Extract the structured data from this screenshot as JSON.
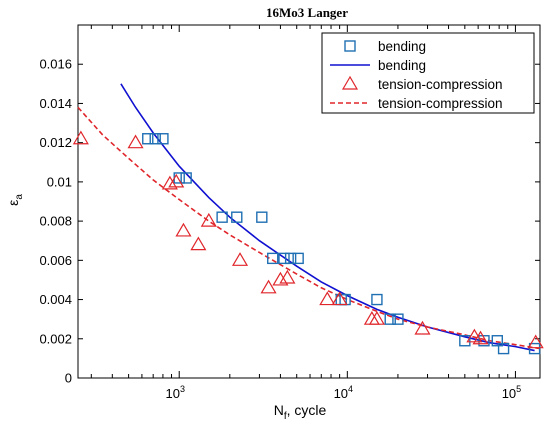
{
  "chart_data": {
    "type": "scatter",
    "title": "16Mo3 Langer",
    "xlabel": "N",
    "xlabel_sub": "f",
    "xlabel_rest": ", cycle",
    "ylabel": "ε",
    "ylabel_sub": "a",
    "x_scale": "log",
    "xlim": [
      250,
      140000
    ],
    "ylim": [
      0,
      0.018
    ],
    "x_ticks": [
      {
        "value": 1000,
        "base": "10",
        "exp": "3"
      },
      {
        "value": 10000,
        "base": "10",
        "exp": "4"
      },
      {
        "value": 100000,
        "base": "10",
        "exp": "5"
      }
    ],
    "y_ticks": [
      {
        "value": 0,
        "label": "0"
      },
      {
        "value": 0.002,
        "label": "0.002"
      },
      {
        "value": 0.004,
        "label": "0.004"
      },
      {
        "value": 0.006,
        "label": "0.006"
      },
      {
        "value": 0.008,
        "label": "0.008"
      },
      {
        "value": 0.01,
        "label": "0.01"
      },
      {
        "value": 0.012,
        "label": "0.012"
      },
      {
        "value": 0.014,
        "label": "0.014"
      },
      {
        "value": 0.016,
        "label": "0.016"
      }
    ],
    "grid": false,
    "legend_position": "top-right",
    "series": [
      {
        "name": "bending",
        "kind": "markers",
        "marker": "square",
        "color": "#1f6fb3",
        "points": [
          {
            "x": 650,
            "y": 0.0122
          },
          {
            "x": 720,
            "y": 0.0122
          },
          {
            "x": 800,
            "y": 0.0122
          },
          {
            "x": 1000,
            "y": 0.0102
          },
          {
            "x": 1100,
            "y": 0.0102
          },
          {
            "x": 1800,
            "y": 0.0082
          },
          {
            "x": 2200,
            "y": 0.0082
          },
          {
            "x": 3100,
            "y": 0.0082
          },
          {
            "x": 3600,
            "y": 0.0061
          },
          {
            "x": 4200,
            "y": 0.0061
          },
          {
            "x": 4600,
            "y": 0.0061
          },
          {
            "x": 5100,
            "y": 0.0061
          },
          {
            "x": 9200,
            "y": 0.004
          },
          {
            "x": 9700,
            "y": 0.004
          },
          {
            "x": 15000,
            "y": 0.004
          },
          {
            "x": 18000,
            "y": 0.003
          },
          {
            "x": 20000,
            "y": 0.003
          },
          {
            "x": 50000,
            "y": 0.0019
          },
          {
            "x": 65000,
            "y": 0.0019
          },
          {
            "x": 78000,
            "y": 0.0019
          },
          {
            "x": 85000,
            "y": 0.0015
          },
          {
            "x": 130000,
            "y": 0.0015
          }
        ]
      },
      {
        "name": "bending",
        "kind": "line",
        "style": "solid",
        "color": "#1010d0",
        "points": [
          {
            "x": 450,
            "y": 0.015
          },
          {
            "x": 550,
            "y": 0.0138
          },
          {
            "x": 700,
            "y": 0.0125
          },
          {
            "x": 1000,
            "y": 0.0108
          },
          {
            "x": 1500,
            "y": 0.0092
          },
          {
            "x": 2000,
            "y": 0.0082
          },
          {
            "x": 3000,
            "y": 0.007
          },
          {
            "x": 5000,
            "y": 0.0057
          },
          {
            "x": 7000,
            "y": 0.0049
          },
          {
            "x": 10000,
            "y": 0.0042
          },
          {
            "x": 15000,
            "y": 0.0035
          },
          {
            "x": 20000,
            "y": 0.0031
          },
          {
            "x": 30000,
            "y": 0.0026
          },
          {
            "x": 50000,
            "y": 0.0021
          },
          {
            "x": 70000,
            "y": 0.0018
          },
          {
            "x": 100000,
            "y": 0.0016
          },
          {
            "x": 130000,
            "y": 0.0014
          }
        ]
      },
      {
        "name": "tension-compression",
        "kind": "markers",
        "marker": "triangle",
        "color": "#e0262b",
        "points": [
          {
            "x": 260,
            "y": 0.0122
          },
          {
            "x": 550,
            "y": 0.012
          },
          {
            "x": 880,
            "y": 0.0099
          },
          {
            "x": 960,
            "y": 0.01
          },
          {
            "x": 1060,
            "y": 0.0075
          },
          {
            "x": 1300,
            "y": 0.0068
          },
          {
            "x": 1500,
            "y": 0.008
          },
          {
            "x": 2300,
            "y": 0.006
          },
          {
            "x": 3400,
            "y": 0.0046
          },
          {
            "x": 4000,
            "y": 0.005
          },
          {
            "x": 4400,
            "y": 0.0051
          },
          {
            "x": 7600,
            "y": 0.004
          },
          {
            "x": 9000,
            "y": 0.004
          },
          {
            "x": 14000,
            "y": 0.003
          },
          {
            "x": 15000,
            "y": 0.003
          },
          {
            "x": 28000,
            "y": 0.0025
          },
          {
            "x": 57000,
            "y": 0.0021
          },
          {
            "x": 62000,
            "y": 0.002
          },
          {
            "x": 132000,
            "y": 0.0018
          }
        ]
      },
      {
        "name": "tension-compression",
        "kind": "line",
        "style": "dashed",
        "color": "#e0262b",
        "points": [
          {
            "x": 250,
            "y": 0.0138
          },
          {
            "x": 350,
            "y": 0.0124
          },
          {
            "x": 500,
            "y": 0.0112
          },
          {
            "x": 700,
            "y": 0.0101
          },
          {
            "x": 1000,
            "y": 0.0091
          },
          {
            "x": 1500,
            "y": 0.008
          },
          {
            "x": 2000,
            "y": 0.0073
          },
          {
            "x": 3000,
            "y": 0.0064
          },
          {
            "x": 5000,
            "y": 0.0053
          },
          {
            "x": 7000,
            "y": 0.0046
          },
          {
            "x": 10000,
            "y": 0.004
          },
          {
            "x": 15000,
            "y": 0.0034
          },
          {
            "x": 20000,
            "y": 0.003
          },
          {
            "x": 30000,
            "y": 0.0026
          },
          {
            "x": 50000,
            "y": 0.0022
          },
          {
            "x": 70000,
            "y": 0.0019
          },
          {
            "x": 100000,
            "y": 0.0017
          },
          {
            "x": 140000,
            "y": 0.0015
          }
        ]
      }
    ]
  }
}
